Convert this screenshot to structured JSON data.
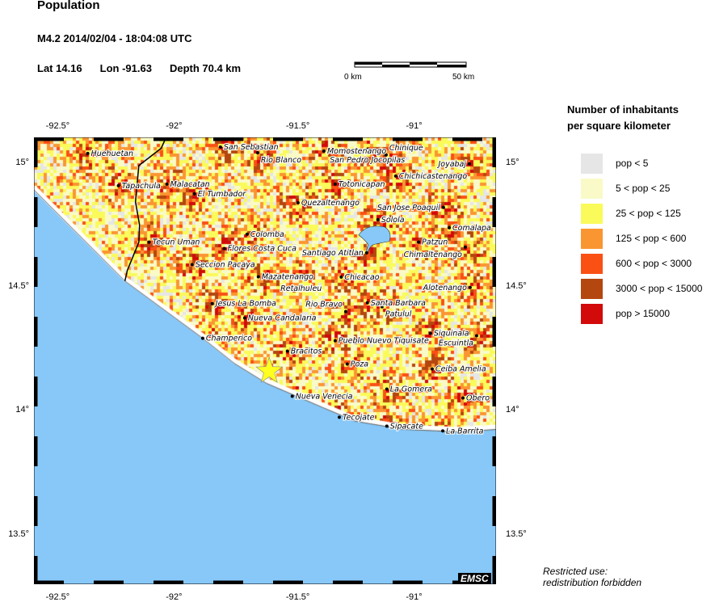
{
  "header": {
    "title": "Population",
    "event": "M4.2  2014/02/04 - 18:04:08 UTC",
    "lat": "Lat 14.16",
    "lon": "Lon -91.63",
    "depth": "Depth  70.4 km"
  },
  "scale_bar": {
    "start": "0 km",
    "end": "50 km"
  },
  "legend": {
    "title_line1": "Number of inhabitants",
    "title_line2": "per square kilometer",
    "items": [
      {
        "label": "pop < 5",
        "color": "#e6e6e6"
      },
      {
        "label": "5 < pop < 25",
        "color": "#fafac8"
      },
      {
        "label": "25 < pop < 125",
        "color": "#fafa5a"
      },
      {
        "label": "125 < pop < 600",
        "color": "#fa9632"
      },
      {
        "label": "600 < pop < 3000",
        "color": "#fa5014"
      },
      {
        "label": "3000 < pop < 15000",
        "color": "#b4460f"
      },
      {
        "label": "pop > 15000",
        "color": "#d20a0a"
      }
    ]
  },
  "axes": {
    "lon_ticks": [
      "-92.5°",
      "-92°",
      "-91.5°",
      "-91°"
    ],
    "lat_ticks": [
      "15°",
      "14.5°",
      "14°",
      "13.5°"
    ],
    "lon_values": [
      -92.5,
      -92,
      -91.5,
      -91
    ],
    "lat_values": [
      15,
      14.5,
      14,
      13.5
    ],
    "lon_range": [
      -92.61,
      -90.685
    ],
    "lat_range": [
      13.3,
      15.104
    ]
  },
  "ocean_color": "#87c8f8",
  "epicenter": {
    "lon": -91.63,
    "lat": 14.16,
    "color": "#ffff20"
  },
  "lake": {
    "lon": -91.197,
    "lat": 14.697
  },
  "coastline": [
    [
      -92.611,
      14.893
    ],
    [
      -92.231,
      14.524
    ],
    [
      -91.911,
      14.296
    ],
    [
      -91.776,
      14.192
    ],
    [
      -91.641,
      14.111
    ],
    [
      -91.406,
      14.013
    ],
    [
      -91.271,
      13.958
    ],
    [
      -91.069,
      13.925
    ],
    [
      -90.833,
      13.915
    ],
    [
      -90.685,
      13.925
    ]
  ],
  "border": [
    [
      -92.062,
      15.098
    ],
    [
      -92.08,
      15.06
    ],
    [
      -92.173,
      14.99
    ],
    [
      -92.187,
      14.844
    ],
    [
      -92.17,
      14.75
    ],
    [
      -92.173,
      14.681
    ],
    [
      -92.221,
      14.567
    ],
    [
      -92.231,
      14.524
    ]
  ],
  "cities": [
    {
      "name": "Huehuetan",
      "lon": -92.386,
      "lat": 15.039
    },
    {
      "name": "Tapachula",
      "lon": -92.258,
      "lat": 14.909
    },
    {
      "name": "Malacatan",
      "lon": -92.056,
      "lat": 14.915
    },
    {
      "name": "El Tumbador",
      "lon": -91.941,
      "lat": 14.876
    },
    {
      "name": "San Sebastian",
      "lon": -91.833,
      "lat": 15.065
    },
    {
      "name": "Rio Blanco",
      "lon": -91.678,
      "lat": 15.042
    },
    {
      "name": "Momostenango",
      "lon": -91.402,
      "lat": 15.049
    },
    {
      "name": "San Pedro Jocopilas",
      "lon": -91.221,
      "lat": 15.055
    },
    {
      "name": "Chinique",
      "lon": -91.143,
      "lat": 15.033
    },
    {
      "name": "Joyabaj",
      "lon": -90.796,
      "lat": 14.997
    },
    {
      "name": "Totonicapan",
      "lon": -91.355,
      "lat": 14.915
    },
    {
      "name": "Chichicastenango",
      "lon": -91.103,
      "lat": 14.948
    },
    {
      "name": "Quezaltenango",
      "lon": -91.51,
      "lat": 14.84
    },
    {
      "name": "Solola",
      "lon": -91.177,
      "lat": 14.772
    },
    {
      "name": "San Jose Poaquil",
      "lon": -90.904,
      "lat": 14.821
    },
    {
      "name": "Comalapa",
      "lon": -90.88,
      "lat": 14.739
    },
    {
      "name": "Patzun",
      "lon": -91.008,
      "lat": 14.681
    },
    {
      "name": "Chimaltenango",
      "lon": -90.813,
      "lat": 14.661
    },
    {
      "name": "Santiago Atitlan",
      "lon": -91.224,
      "lat": 14.638
    },
    {
      "name": "Colomba",
      "lon": -91.722,
      "lat": 14.713
    },
    {
      "name": "Flores Costa Cuca",
      "lon": -91.817,
      "lat": 14.655
    },
    {
      "name": "Tecun Uman",
      "lon": -92.13,
      "lat": 14.681
    },
    {
      "name": "Seccion Pacaya",
      "lon": -91.951,
      "lat": 14.59
    },
    {
      "name": "Mazatenango",
      "lon": -91.675,
      "lat": 14.541
    },
    {
      "name": "Retalhuleu",
      "lon": -91.497,
      "lat": 14.537
    },
    {
      "name": "Chicacao",
      "lon": -91.33,
      "lat": 14.54
    },
    {
      "name": "Jesus La Bomba",
      "lon": -91.867,
      "lat": 14.433
    },
    {
      "name": "Nueva Candalaria",
      "lon": -91.732,
      "lat": 14.375
    },
    {
      "name": "Santa Barbara",
      "lon": -91.221,
      "lat": 14.436
    },
    {
      "name": "Patulul",
      "lon": -91.16,
      "lat": 14.42
    },
    {
      "name": "Rio Bravo",
      "lon": -91.311,
      "lat": 14.401
    },
    {
      "name": "Champerico",
      "lon": -91.907,
      "lat": 14.293
    },
    {
      "name": "Bracitos",
      "lon": -91.554,
      "lat": 14.241
    },
    {
      "name": "Pueblo Nuevo Tiquisate",
      "lon": -91.355,
      "lat": 14.283
    },
    {
      "name": "Siquinala",
      "lon": -90.958,
      "lat": 14.313
    },
    {
      "name": "Escuintla",
      "lon": -90.766,
      "lat": 14.303
    },
    {
      "name": "Poza",
      "lon": -91.305,
      "lat": 14.189
    },
    {
      "name": "Ceiba Amelia",
      "lon": -90.951,
      "lat": 14.169
    },
    {
      "name": "Nueva Venecia",
      "lon": -91.534,
      "lat": 14.059
    },
    {
      "name": "La Gomera",
      "lon": -91.14,
      "lat": 14.088
    },
    {
      "name": "Obero",
      "lon": -90.823,
      "lat": 14.052
    },
    {
      "name": "Tecojate",
      "lon": -91.338,
      "lat": 13.974
    },
    {
      "name": "Sipacate",
      "lon": -91.14,
      "lat": 13.938
    },
    {
      "name": "La Barrita",
      "lon": -90.907,
      "lat": 13.919
    },
    {
      "name": "Alotenango",
      "lon": -90.793,
      "lat": 14.498
    }
  ],
  "watermark": "EMSC",
  "restriction": {
    "line1": "Restricted use:",
    "line2": "redistribution forbidden"
  }
}
